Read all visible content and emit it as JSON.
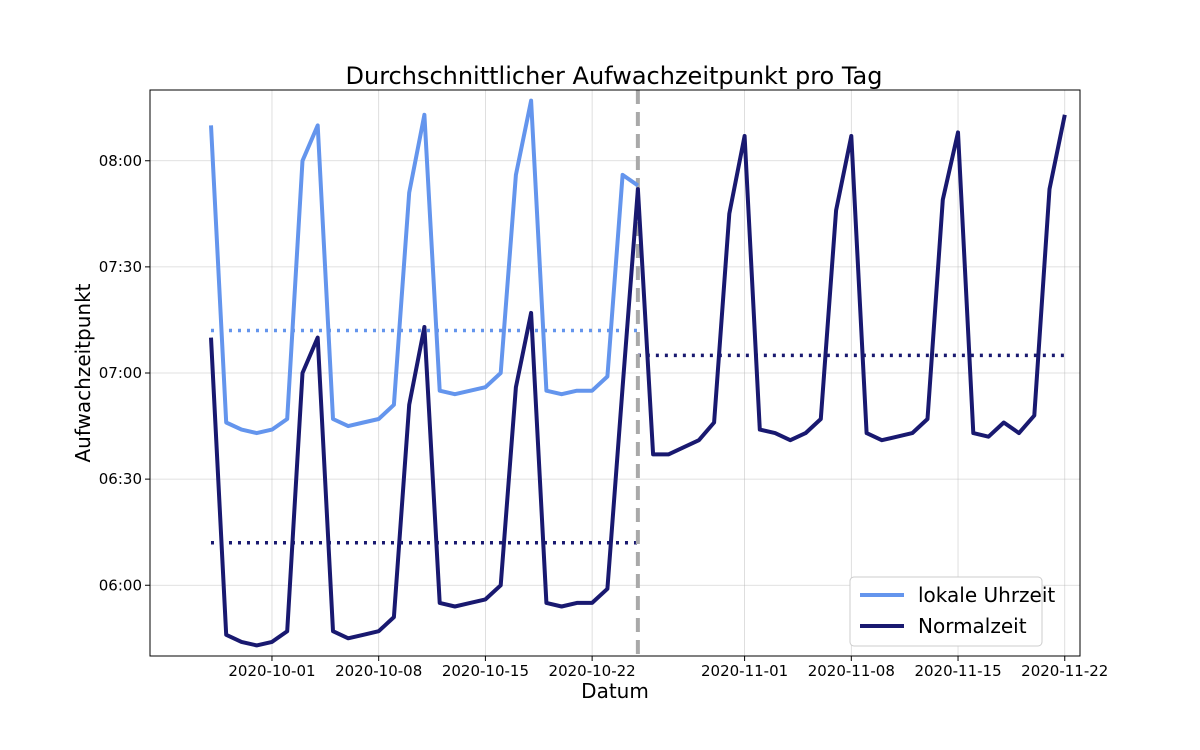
{
  "chart_data": {
    "type": "line",
    "title": "Durchschnittlicher Aufwachzeitpunkt pro Tag",
    "xlabel": "Datum",
    "ylabel": "Aufwachzeitpunkt",
    "x_range": [
      "2020-09-23",
      "2020-11-23"
    ],
    "y_range": [
      "05:40",
      "08:20"
    ],
    "x_ticks": [
      "2020-10-01",
      "2020-10-08",
      "2020-10-15",
      "2020-10-22",
      "2020-11-01",
      "2020-11-08",
      "2020-11-15",
      "2020-11-22"
    ],
    "y_ticks": [
      "06:00",
      "06:30",
      "07:00",
      "07:30",
      "08:00"
    ],
    "grid": true,
    "legend_position": "bottom-right",
    "series": [
      {
        "name": "lokale Uhrzeit",
        "color": "#6495ED",
        "x": [
          "2020-09-27",
          "2020-09-28",
          "2020-09-29",
          "2020-09-30",
          "2020-10-01",
          "2020-10-02",
          "2020-10-03",
          "2020-10-04",
          "2020-10-05",
          "2020-10-06",
          "2020-10-07",
          "2020-10-08",
          "2020-10-09",
          "2020-10-10",
          "2020-10-11",
          "2020-10-12",
          "2020-10-13",
          "2020-10-14",
          "2020-10-15",
          "2020-10-16",
          "2020-10-17",
          "2020-10-18",
          "2020-10-19",
          "2020-10-20",
          "2020-10-21",
          "2020-10-22",
          "2020-10-23",
          "2020-10-24",
          "2020-10-25"
        ],
        "y": [
          "08:10",
          "06:46",
          "06:44",
          "06:43",
          "06:44",
          "06:47",
          "08:00",
          "08:10",
          "06:47",
          "06:45",
          "06:46",
          "06:47",
          "06:51",
          "07:51",
          "08:13",
          "06:55",
          "06:54",
          "06:55",
          "06:56",
          "07:00",
          "07:56",
          "08:17",
          "06:55",
          "06:54",
          "06:55",
          "06:55",
          "06:59",
          "07:56",
          "07:53"
        ]
      },
      {
        "name": "Normalzeit",
        "color": "#191970",
        "x": [
          "2020-09-27",
          "2020-09-28",
          "2020-09-29",
          "2020-09-30",
          "2020-10-01",
          "2020-10-02",
          "2020-10-03",
          "2020-10-04",
          "2020-10-05",
          "2020-10-06",
          "2020-10-07",
          "2020-10-08",
          "2020-10-09",
          "2020-10-10",
          "2020-10-11",
          "2020-10-12",
          "2020-10-13",
          "2020-10-14",
          "2020-10-15",
          "2020-10-16",
          "2020-10-17",
          "2020-10-18",
          "2020-10-19",
          "2020-10-20",
          "2020-10-21",
          "2020-10-22",
          "2020-10-23",
          "2020-10-24",
          "2020-10-25",
          "2020-10-26",
          "2020-10-27",
          "2020-10-28",
          "2020-10-29",
          "2020-10-30",
          "2020-10-31",
          "2020-11-01",
          "2020-11-02",
          "2020-11-03",
          "2020-11-04",
          "2020-11-05",
          "2020-11-06",
          "2020-11-07",
          "2020-11-08",
          "2020-11-09",
          "2020-11-10",
          "2020-11-11",
          "2020-11-12",
          "2020-11-13",
          "2020-11-14",
          "2020-11-15",
          "2020-11-16",
          "2020-11-17",
          "2020-11-18",
          "2020-11-19",
          "2020-11-20",
          "2020-11-21",
          "2020-11-22"
        ],
        "y": [
          "07:10",
          "05:46",
          "05:44",
          "05:43",
          "05:44",
          "05:47",
          "07:00",
          "07:10",
          "05:47",
          "05:45",
          "05:46",
          "05:47",
          "05:51",
          "06:51",
          "07:13",
          "05:55",
          "05:54",
          "05:55",
          "05:56",
          "06:00",
          "06:56",
          "07:17",
          "05:55",
          "05:54",
          "05:55",
          "05:55",
          "05:59",
          "06:56",
          "07:52",
          "06:37",
          "06:37",
          "06:39",
          "06:41",
          "06:46",
          "07:45",
          "08:07",
          "06:44",
          "06:43",
          "06:41",
          "06:43",
          "06:47",
          "07:46",
          "08:07",
          "06:43",
          "06:41",
          "06:42",
          "06:43",
          "06:47",
          "07:49",
          "08:08",
          "06:43",
          "06:42",
          "06:46",
          "06:43",
          "06:48",
          "07:52",
          "08:13"
        ]
      }
    ],
    "reference_lines": [
      {
        "name": "lokale Uhrzeit Durchschnitt",
        "color": "#6495ED",
        "x_from": "2020-09-27",
        "x_to": "2020-10-25",
        "y": "07:12"
      },
      {
        "name": "Normalzeit Durchschnitt 1",
        "color": "#191970",
        "x_from": "2020-09-27",
        "x_to": "2020-10-25",
        "y": "06:12"
      },
      {
        "name": "Normalzeit Durchschnitt 2",
        "color": "#191970",
        "x_from": "2020-10-25",
        "x_to": "2020-11-22",
        "y": "07:05"
      }
    ],
    "vertical_marker": {
      "x": "2020-10-25",
      "color": "#a9a9a9"
    }
  }
}
